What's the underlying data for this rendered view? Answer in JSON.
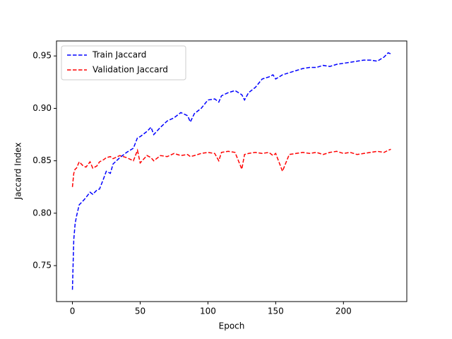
{
  "chart_data": {
    "type": "line",
    "x_label": "Epoch",
    "y_label": "Jaccard Index",
    "x": [
      0,
      1,
      2,
      3,
      5,
      8,
      10,
      13,
      15,
      18,
      20,
      23,
      25,
      28,
      30,
      35,
      40,
      45,
      48,
      50,
      55,
      58,
      60,
      65,
      70,
      75,
      80,
      85,
      87,
      90,
      95,
      100,
      105,
      108,
      110,
      115,
      120,
      125,
      127,
      130,
      135,
      140,
      145,
      148,
      150,
      155,
      160,
      165,
      170,
      175,
      180,
      185,
      190,
      195,
      200,
      205,
      210,
      215,
      220,
      225,
      230,
      233,
      235
    ],
    "series": [
      {
        "name": "Train Jaccard",
        "color": "#0000ff",
        "values": [
          0.727,
          0.775,
          0.79,
          0.797,
          0.808,
          0.812,
          0.815,
          0.82,
          0.818,
          0.822,
          0.823,
          0.833,
          0.84,
          0.838,
          0.847,
          0.853,
          0.858,
          0.862,
          0.872,
          0.873,
          0.878,
          0.882,
          0.875,
          0.882,
          0.888,
          0.891,
          0.896,
          0.893,
          0.887,
          0.895,
          0.9,
          0.908,
          0.909,
          0.906,
          0.912,
          0.915,
          0.917,
          0.913,
          0.908,
          0.915,
          0.92,
          0.928,
          0.93,
          0.932,
          0.928,
          0.932,
          0.934,
          0.936,
          0.938,
          0.939,
          0.939,
          0.941,
          0.94,
          0.942,
          0.943,
          0.944,
          0.945,
          0.946,
          0.946,
          0.945,
          0.949,
          0.953,
          0.952
        ]
      },
      {
        "name": "Validation Jaccard",
        "color": "#ff0000",
        "values": [
          0.825,
          0.838,
          0.842,
          0.843,
          0.849,
          0.845,
          0.844,
          0.849,
          0.843,
          0.845,
          0.849,
          0.851,
          0.853,
          0.854,
          0.852,
          0.855,
          0.853,
          0.85,
          0.86,
          0.848,
          0.855,
          0.853,
          0.85,
          0.855,
          0.854,
          0.857,
          0.855,
          0.856,
          0.854,
          0.855,
          0.857,
          0.858,
          0.857,
          0.85,
          0.858,
          0.859,
          0.858,
          0.842,
          0.856,
          0.857,
          0.858,
          0.857,
          0.858,
          0.855,
          0.857,
          0.84,
          0.856,
          0.857,
          0.858,
          0.857,
          0.858,
          0.856,
          0.858,
          0.859,
          0.857,
          0.858,
          0.856,
          0.857,
          0.858,
          0.859,
          0.858,
          0.86,
          0.861
        ]
      }
    ],
    "xlim": [
      -11.75,
      246.75
    ],
    "ylim": [
      0.7157,
      0.9643
    ],
    "xticks": [
      0,
      50,
      100,
      150,
      200
    ],
    "yticks": [
      0.75,
      {
        "value": 0.8,
        "label": "0.80"
      },
      0.85,
      {
        "value": 0.9,
        "label": "0.90"
      },
      0.95
    ],
    "legend": "upper left",
    "line_style": "dashed"
  }
}
